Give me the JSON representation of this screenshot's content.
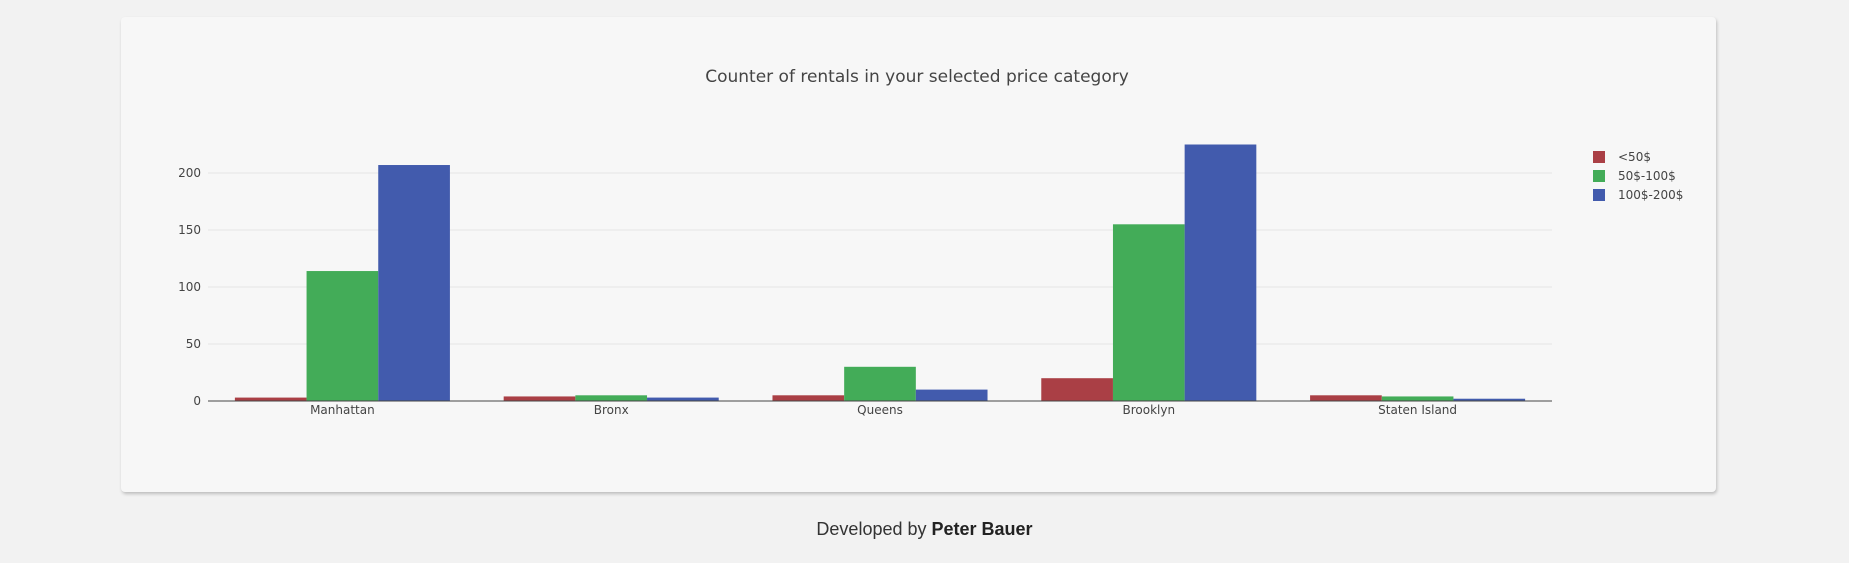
{
  "chart_data": {
    "type": "bar",
    "title": "Counter of rentals in your selected price category",
    "categories": [
      "Manhattan",
      "Bronx",
      "Queens",
      "Brooklyn",
      "Staten Island"
    ],
    "series": [
      {
        "name": "<50$",
        "color": "#aa3f45",
        "values": [
          3,
          4,
          5,
          20,
          5
        ]
      },
      {
        "name": "50$-100$",
        "color": "#43ac58",
        "values": [
          114,
          5,
          30,
          155,
          4
        ]
      },
      {
        "name": "100$-200$",
        "color": "#425bad",
        "values": [
          207,
          3,
          10,
          225,
          2
        ]
      }
    ],
    "yticks": [
      0,
      50,
      100,
      150,
      200
    ],
    "ylim": [
      0,
      225
    ],
    "grid": true,
    "legend_position": "right",
    "xlabel": "",
    "ylabel": ""
  },
  "footer": {
    "prefix": "Developed by ",
    "author": "Peter Bauer"
  }
}
